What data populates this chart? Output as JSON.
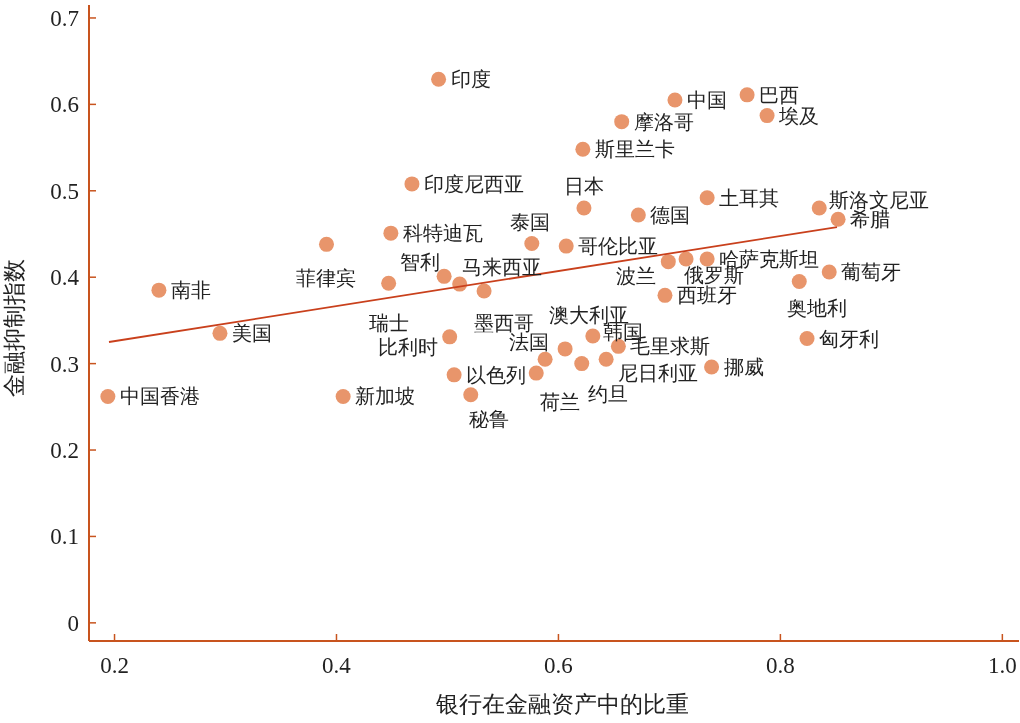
{
  "chart_data": {
    "type": "scatter",
    "xlabel": "银行在金融资产中的比重",
    "ylabel": "金融抑制指数",
    "xlim": [
      0.177,
      1.015
    ],
    "ylim": [
      -0.021,
      0.715
    ],
    "xticks": [
      {
        "value": 0.2,
        "label": "0.2"
      },
      {
        "value": 0.4,
        "label": "0.4"
      },
      {
        "value": 0.6,
        "label": "0.6"
      },
      {
        "value": 0.8,
        "label": "0.8"
      },
      {
        "value": 1.0,
        "label": "1.0"
      }
    ],
    "yticks": [
      0,
      {
        "value": 0.1,
        "label": "0.1"
      },
      {
        "value": 0.2,
        "label": "0.2"
      },
      {
        "value": 0.3,
        "label": "0.3"
      },
      {
        "value": 0.4,
        "label": "0.4"
      },
      {
        "value": 0.5,
        "label": "0.5"
      },
      {
        "value": 0.6,
        "label": "0.6"
      },
      {
        "value": 0.7,
        "label": "0.7"
      }
    ],
    "grid": false,
    "marker": "circle",
    "series": [
      {
        "type": "scatter",
        "color": "#e8956b",
        "x": [
          0.194,
          0.24,
          0.295,
          0.391,
          0.406,
          0.449,
          0.447,
          0.468,
          0.492,
          0.497,
          0.511,
          0.533,
          0.502,
          0.506,
          0.521,
          0.576,
          0.607,
          0.623,
          0.622,
          0.657,
          0.705,
          0.77,
          0.788,
          0.672,
          0.734,
          0.835,
          0.852,
          0.699,
          0.715,
          0.734,
          0.696,
          0.844,
          0.817,
          0.824,
          0.738,
          0.606,
          0.58,
          0.588,
          0.621,
          0.631,
          0.643,
          0.654
        ],
        "values": [
          0.262,
          0.385,
          0.335,
          0.438,
          0.262,
          0.451,
          0.393,
          0.508,
          0.629,
          0.401,
          0.392,
          0.384,
          0.331,
          0.287,
          0.264,
          0.439,
          0.436,
          0.48,
          0.548,
          0.58,
          0.605,
          0.611,
          0.587,
          0.472,
          0.492,
          0.48,
          0.467,
          0.418,
          0.421,
          0.421,
          0.379,
          0.406,
          0.395,
          0.329,
          0.296,
          0.317,
          0.289,
          0.305,
          0.3,
          0.332,
          0.305,
          0.32
        ]
      },
      {
        "type": "line",
        "color": "#c9401c",
        "line_style": "solid",
        "marker": "none",
        "x": [
          0.195,
          0.851
        ],
        "values": [
          0.325,
          0.458
        ]
      }
    ],
    "annotations": [
      {
        "text": "中国香港",
        "x": 0.194,
        "y": 0.262
      },
      {
        "text": "南非",
        "x": 0.24,
        "y": 0.385
      },
      {
        "text": "美国",
        "x": 0.295,
        "y": 0.335
      },
      {
        "text": "菲律宾",
        "x": 0.391,
        "y": 0.438
      },
      {
        "text": "新加坡",
        "x": 0.406,
        "y": 0.262
      },
      {
        "text": "科特迪瓦",
        "x": 0.449,
        "y": 0.451
      },
      {
        "text": "瑞士",
        "x": 0.447,
        "y": 0.393
      },
      {
        "text": "印度尼西亚",
        "x": 0.468,
        "y": 0.508
      },
      {
        "text": "印度",
        "x": 0.492,
        "y": 0.629
      },
      {
        "text": "智利",
        "x": 0.497,
        "y": 0.401
      },
      {
        "text": "马来西亚",
        "x": 0.511,
        "y": 0.392
      },
      {
        "text": "墨西哥",
        "x": 0.533,
        "y": 0.384
      },
      {
        "text": "比利时",
        "x": 0.502,
        "y": 0.331
      },
      {
        "text": "以色列",
        "x": 0.506,
        "y": 0.287
      },
      {
        "text": "秘鲁",
        "x": 0.521,
        "y": 0.264
      },
      {
        "text": "泰国",
        "x": 0.576,
        "y": 0.439
      },
      {
        "text": "哥伦比亚",
        "x": 0.607,
        "y": 0.436
      },
      {
        "text": "日本",
        "x": 0.623,
        "y": 0.48
      },
      {
        "text": "斯里兰卡",
        "x": 0.622,
        "y": 0.548
      },
      {
        "text": "摩洛哥",
        "x": 0.657,
        "y": 0.58
      },
      {
        "text": "中国",
        "x": 0.705,
        "y": 0.605
      },
      {
        "text": "巴西",
        "x": 0.77,
        "y": 0.611
      },
      {
        "text": "埃及",
        "x": 0.788,
        "y": 0.587
      },
      {
        "text": "德国",
        "x": 0.672,
        "y": 0.472
      },
      {
        "text": "土耳其",
        "x": 0.734,
        "y": 0.492
      },
      {
        "text": "斯洛文尼亚",
        "x": 0.835,
        "y": 0.48
      },
      {
        "text": "希腊",
        "x": 0.852,
        "y": 0.467
      },
      {
        "text": "波兰",
        "x": 0.699,
        "y": 0.418
      },
      {
        "text": "俄罗斯",
        "x": 0.715,
        "y": 0.421
      },
      {
        "text": "哈萨克斯坦",
        "x": 0.734,
        "y": 0.421
      },
      {
        "text": "西班牙",
        "x": 0.696,
        "y": 0.379
      },
      {
        "text": "葡萄牙",
        "x": 0.844,
        "y": 0.406
      },
      {
        "text": "奥地利",
        "x": 0.817,
        "y": 0.395
      },
      {
        "text": "匈牙利",
        "x": 0.824,
        "y": 0.329
      },
      {
        "text": "挪威",
        "x": 0.738,
        "y": 0.296
      },
      {
        "text": "澳大利亚",
        "x": 0.606,
        "y": 0.317
      },
      {
        "text": "荷兰",
        "x": 0.58,
        "y": 0.289
      },
      {
        "text": "法国",
        "x": 0.588,
        "y": 0.305
      },
      {
        "text": "约旦",
        "x": 0.621,
        "y": 0.3
      },
      {
        "text": "韩国",
        "x": 0.631,
        "y": 0.332
      },
      {
        "text": "尼日利亚",
        "x": 0.643,
        "y": 0.305
      },
      {
        "text": "毛里求斯",
        "x": 0.654,
        "y": 0.32
      }
    ]
  }
}
